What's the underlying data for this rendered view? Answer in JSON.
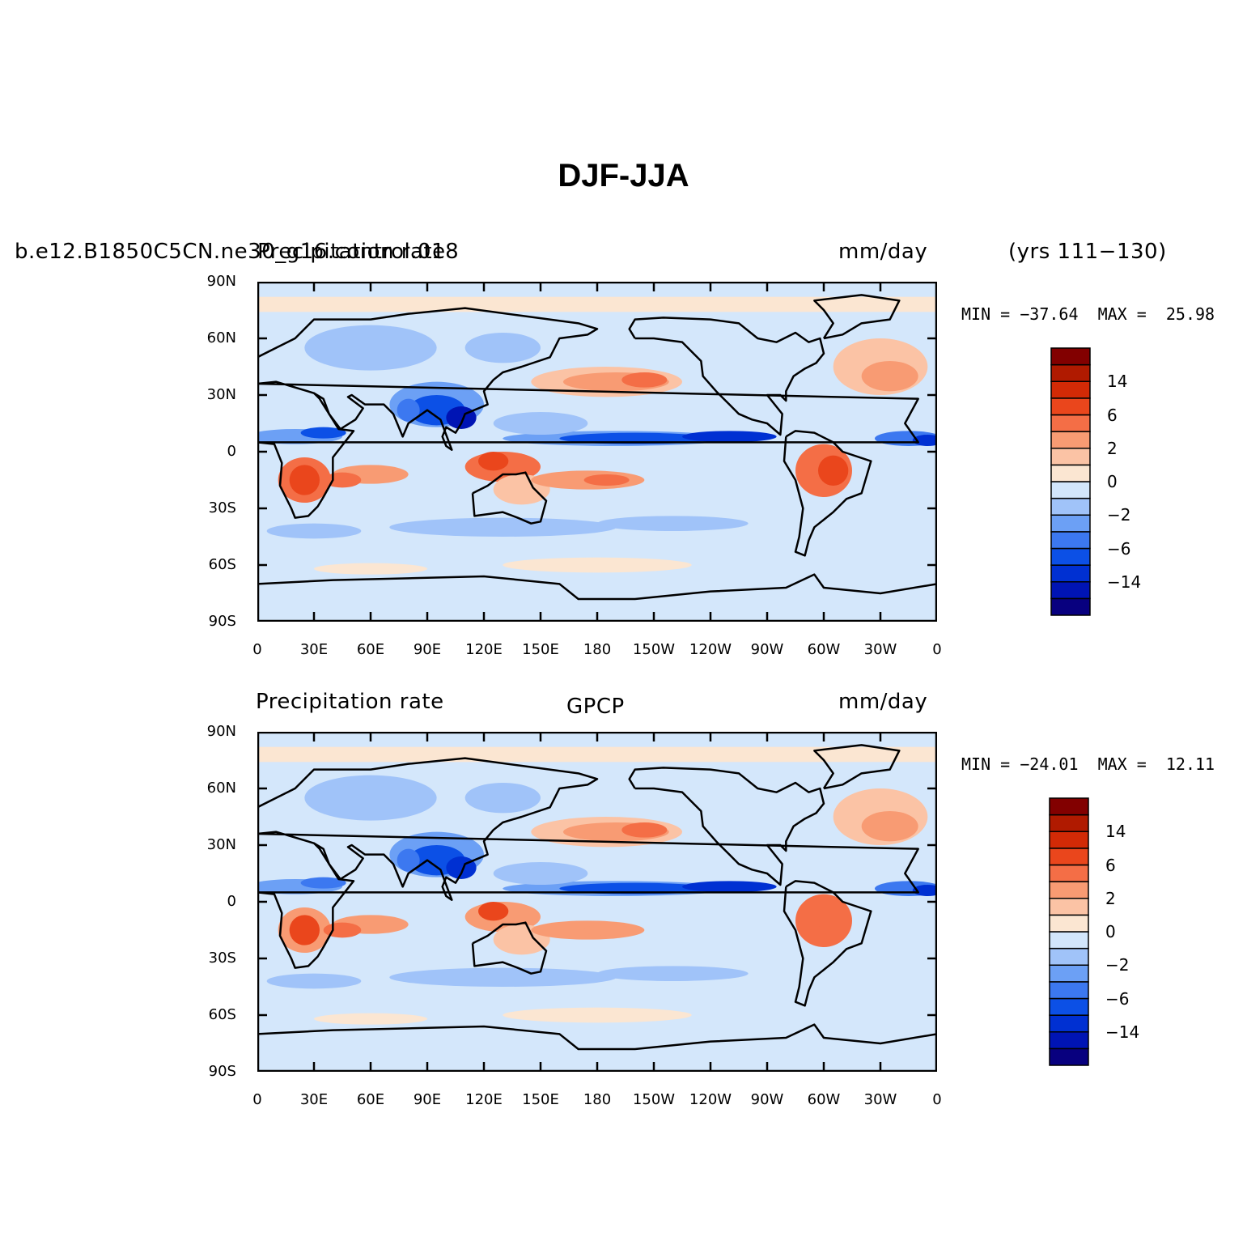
{
  "title": "DJF-JJA",
  "colors": {
    "levels": [
      "#08007f",
      "#0014b4",
      "#0030d2",
      "#0c50e6",
      "#3c78f0",
      "#6ca0f5",
      "#a0c3f9",
      "#d2e6fb",
      "#fbe6d2",
      "#fbc3a5",
      "#f89b73",
      "#f46e46",
      "#ea461c",
      "#d22a06",
      "#b01a00",
      "#820000"
    ],
    "ocean": "#d4e7fb",
    "outline": "#000000"
  },
  "panels": [
    {
      "left_label": "b.e12.B1850C5CN.ne30_g16.control.018",
      "center_label": "Precipitation rate",
      "right_label": "mm/day",
      "years_label": "(yrs 111−130)",
      "stats": "MIN = −37.64  MAX =  25.98",
      "colorbar_labels": [
        "14",
        "6",
        "2",
        "0",
        "−2",
        "−6",
        "−14"
      ]
    },
    {
      "left_label": "Precipitation rate",
      "center_label": "GPCP",
      "right_label": "mm/day",
      "years_label": "",
      "stats": "MIN = −24.01  MAX =  12.11",
      "colorbar_labels": [
        "14",
        "6",
        "2",
        "0",
        "−2",
        "−6",
        "−14"
      ]
    }
  ],
  "lat_ticks": [
    "90N",
    "60N",
    "30N",
    "0",
    "30S",
    "60S",
    "90S"
  ],
  "lon_ticks": [
    "0",
    "30E",
    "60E",
    "90E",
    "120E",
    "150E",
    "180",
    "150W",
    "120W",
    "90W",
    "60W",
    "30W",
    "0"
  ]
}
